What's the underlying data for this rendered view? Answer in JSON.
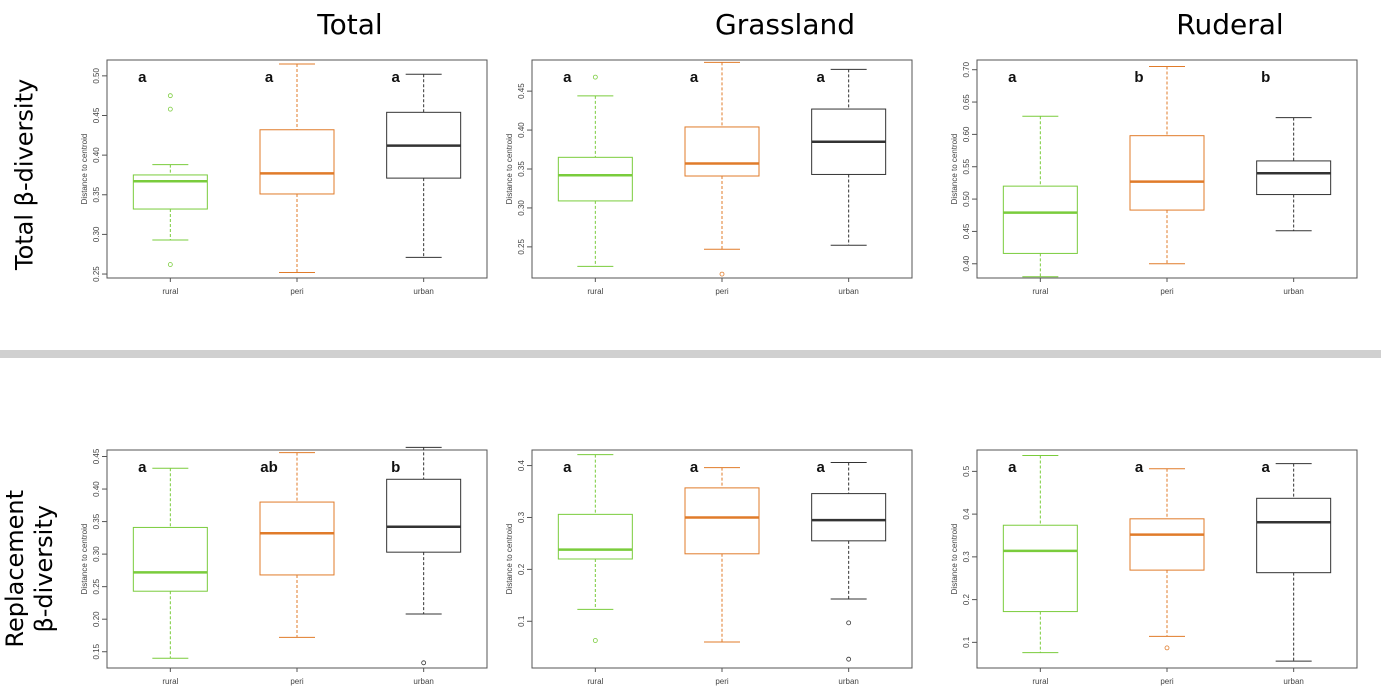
{
  "column_titles": [
    "Total",
    "Grassland",
    "Ruderal"
  ],
  "row_labels": [
    [
      "Total β-diversity"
    ],
    [
      "Replacement",
      "β-diversity"
    ]
  ],
  "colors": {
    "rural": "#7acc3c",
    "peri": "#e07b2a",
    "urban": "#333333"
  },
  "chart_data": [
    {
      "type": "box",
      "title": "",
      "ylabel": "Distance to centroid",
      "ylim": [
        0.245,
        0.52
      ],
      "yticks": [
        "0.25",
        "0.30",
        "0.35",
        "0.40",
        "0.45",
        "0.50"
      ],
      "categories": [
        "rural",
        "peri",
        "urban"
      ],
      "letters": [
        "a",
        "a",
        "a"
      ],
      "boxes": [
        {
          "whislo": 0.293,
          "q1": 0.332,
          "med": 0.367,
          "q3": 0.375,
          "whishi": 0.388,
          "fliers": [
            0.262,
            0.458,
            0.475
          ]
        },
        {
          "whislo": 0.252,
          "q1": 0.351,
          "med": 0.377,
          "q3": 0.432,
          "whishi": 0.515,
          "fliers": []
        },
        {
          "whislo": 0.271,
          "q1": 0.371,
          "med": 0.412,
          "q3": 0.454,
          "whishi": 0.502,
          "fliers": []
        }
      ]
    },
    {
      "type": "box",
      "title": "",
      "ylabel": "Distance to centroid",
      "ylim": [
        0.21,
        0.49
      ],
      "yticks": [
        "0.25",
        "0.30",
        "0.35",
        "0.40",
        "0.45"
      ],
      "categories": [
        "rural",
        "peri",
        "urban"
      ],
      "letters": [
        "a",
        "a",
        "a"
      ],
      "boxes": [
        {
          "whislo": 0.225,
          "q1": 0.309,
          "med": 0.342,
          "q3": 0.365,
          "whishi": 0.444,
          "fliers": [
            0.468
          ]
        },
        {
          "whislo": 0.247,
          "q1": 0.341,
          "med": 0.357,
          "q3": 0.404,
          "whishi": 0.487,
          "fliers": [
            0.215
          ]
        },
        {
          "whislo": 0.252,
          "q1": 0.343,
          "med": 0.385,
          "q3": 0.427,
          "whishi": 0.478,
          "fliers": []
        }
      ]
    },
    {
      "type": "box",
      "title": "",
      "ylabel": "Distance to centroid",
      "ylim": [
        0.378,
        0.715
      ],
      "yticks": [
        "0.40",
        "0.45",
        "0.50",
        "0.55",
        "0.60",
        "0.65",
        "0.70"
      ],
      "categories": [
        "rural",
        "peri",
        "urban"
      ],
      "letters": [
        "a",
        "b",
        "b"
      ],
      "boxes": [
        {
          "whislo": 0.38,
          "q1": 0.416,
          "med": 0.479,
          "q3": 0.52,
          "whishi": 0.628,
          "fliers": []
        },
        {
          "whislo": 0.4,
          "q1": 0.483,
          "med": 0.527,
          "q3": 0.598,
          "whishi": 0.705,
          "fliers": []
        },
        {
          "whislo": 0.451,
          "q1": 0.507,
          "med": 0.54,
          "q3": 0.559,
          "whishi": 0.626,
          "fliers": []
        }
      ]
    },
    {
      "type": "box",
      "title": "",
      "ylabel": "Distance to centroid",
      "ylim": [
        0.125,
        0.46
      ],
      "yticks": [
        "0.15",
        "0.20",
        "0.25",
        "0.30",
        "0.35",
        "0.40",
        "0.45"
      ],
      "categories": [
        "rural",
        "peri",
        "urban"
      ],
      "letters": [
        "a",
        "ab",
        "b"
      ],
      "boxes": [
        {
          "whislo": 0.14,
          "q1": 0.243,
          "med": 0.272,
          "q3": 0.341,
          "whishi": 0.432,
          "fliers": []
        },
        {
          "whislo": 0.172,
          "q1": 0.268,
          "med": 0.332,
          "q3": 0.38,
          "whishi": 0.456,
          "fliers": []
        },
        {
          "whislo": 0.208,
          "q1": 0.303,
          "med": 0.342,
          "q3": 0.415,
          "whishi": 0.464,
          "fliers": [
            0.133
          ]
        }
      ]
    },
    {
      "type": "box",
      "title": "",
      "ylabel": "Distance to centroid",
      "ylim": [
        0.01,
        0.43
      ],
      "yticks": [
        "0.1",
        "0.2",
        "0.3",
        "0.4"
      ],
      "categories": [
        "rural",
        "peri",
        "urban"
      ],
      "letters": [
        "a",
        "a",
        "a"
      ],
      "boxes": [
        {
          "whislo": 0.123,
          "q1": 0.22,
          "med": 0.238,
          "q3": 0.306,
          "whishi": 0.421,
          "fliers": [
            0.063
          ]
        },
        {
          "whislo": 0.06,
          "q1": 0.23,
          "med": 0.3,
          "q3": 0.357,
          "whishi": 0.396,
          "fliers": []
        },
        {
          "whislo": 0.143,
          "q1": 0.255,
          "med": 0.295,
          "q3": 0.346,
          "whishi": 0.406,
          "fliers": [
            0.097,
            0.027
          ]
        }
      ]
    },
    {
      "type": "box",
      "title": "",
      "ylabel": "Distance to centroid",
      "ylim": [
        0.04,
        0.55
      ],
      "yticks": [
        "0.1",
        "0.2",
        "0.3",
        "0.4",
        "0.5"
      ],
      "categories": [
        "rural",
        "peri",
        "urban"
      ],
      "letters": [
        "a",
        "a",
        "a"
      ],
      "boxes": [
        {
          "whislo": 0.076,
          "q1": 0.172,
          "med": 0.314,
          "q3": 0.374,
          "whishi": 0.537,
          "fliers": []
        },
        {
          "whislo": 0.114,
          "q1": 0.269,
          "med": 0.352,
          "q3": 0.389,
          "whishi": 0.506,
          "fliers": [
            0.087
          ]
        },
        {
          "whislo": 0.056,
          "q1": 0.263,
          "med": 0.381,
          "q3": 0.437,
          "whishi": 0.518,
          "fliers": []
        }
      ]
    }
  ]
}
